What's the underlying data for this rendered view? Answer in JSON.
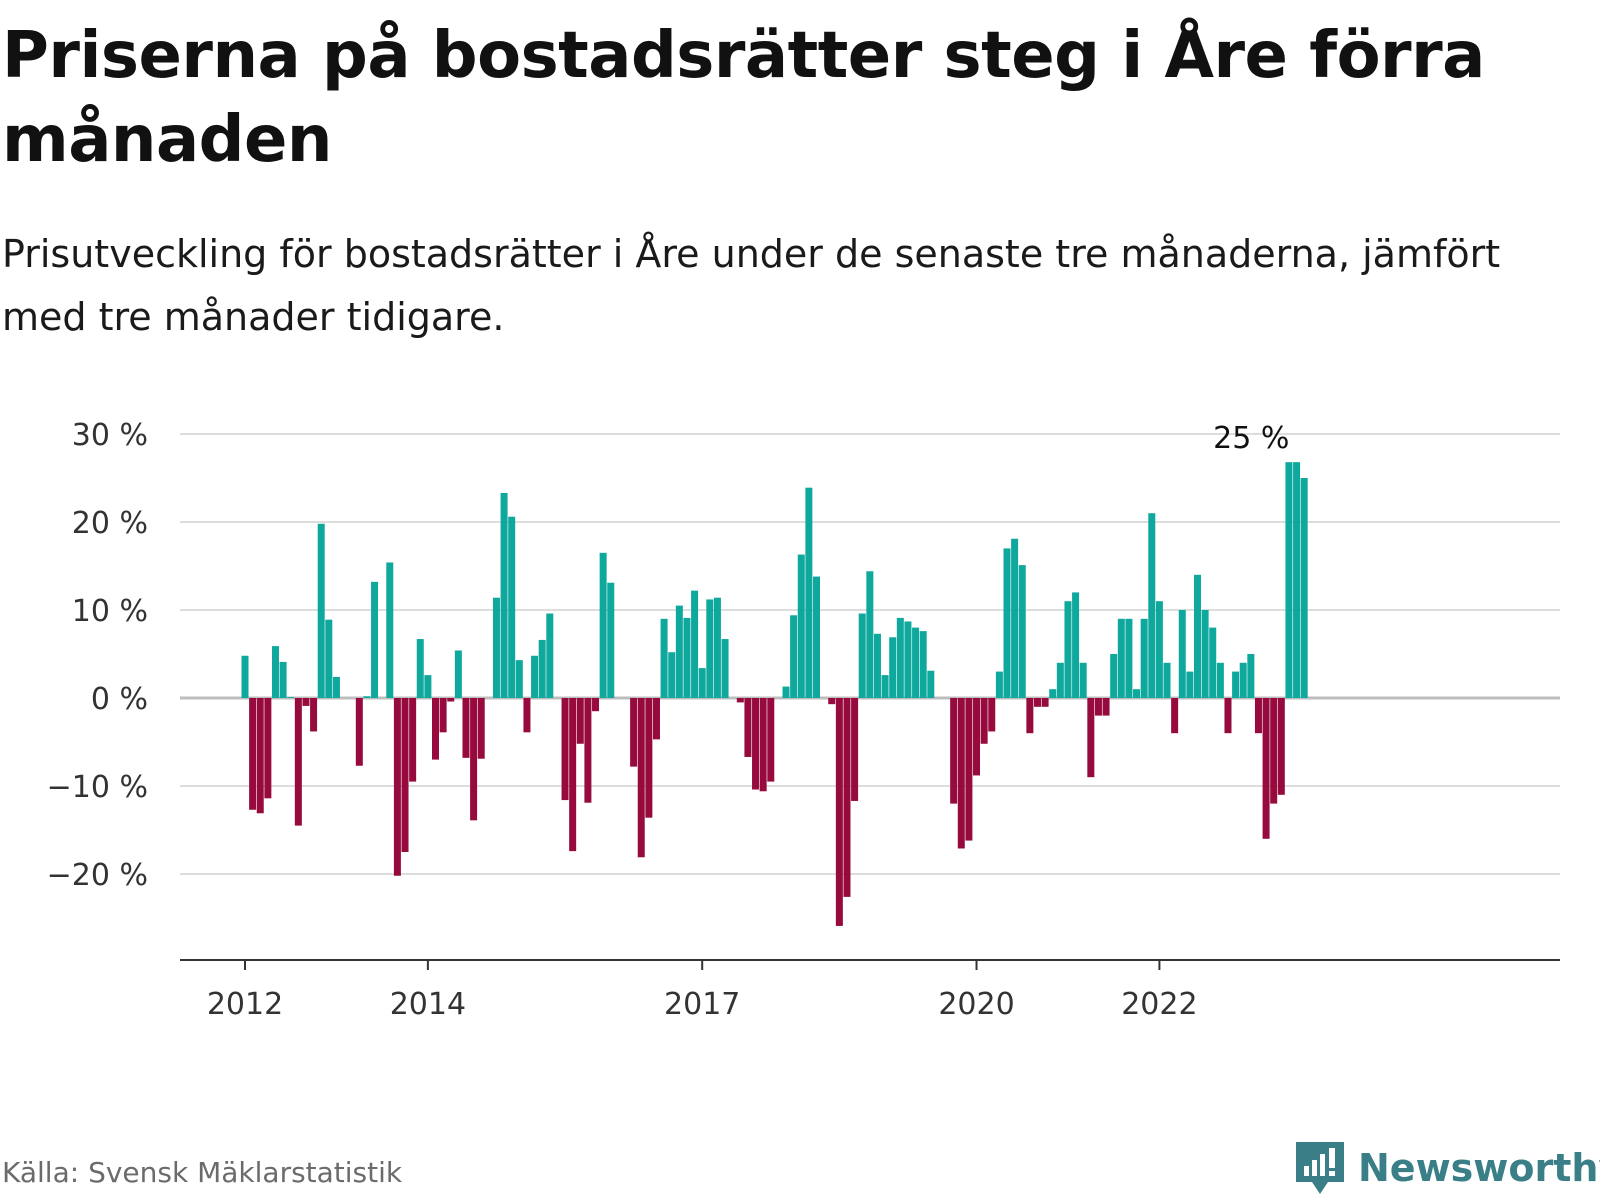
{
  "title": "Priserna på bostadsrätter steg i Åre förra månaden",
  "subtitle": "Prisutveckling för bostadsrätter i Åre under de senaste tre månaderna, jämfört med tre månader tidigare.",
  "source": "Källa: Svensk Mäklarstatistik",
  "brand": {
    "name": "Newsworthy"
  },
  "colors": {
    "positive": "#0fa89d",
    "negative": "#960a3e",
    "grid": "#dddddd",
    "axis": "#333333",
    "brand": "#3a7f87"
  },
  "chart_data": {
    "type": "bar",
    "title": "Priserna på bostadsrätter steg i Åre förra månaden",
    "xlabel": "",
    "ylabel": "",
    "ylim": [
      -30,
      30
    ],
    "y_ticks": [
      30,
      20,
      10,
      0,
      -10,
      -20
    ],
    "y_tick_labels": [
      "30 %",
      "20 %",
      "10 %",
      "0 %",
      "−10 %",
      "−20 %"
    ],
    "x_ticks": [
      "2012",
      "2014",
      "2017",
      "2020",
      "2022"
    ],
    "x_tick_month_index": [
      0,
      24,
      60,
      96,
      120
    ],
    "first_month": "2012-01",
    "grid": true,
    "legend": "none",
    "annotation": {
      "text": "25 %",
      "month_index": 131
    },
    "values": [
      4.8,
      -12.7,
      -13.1,
      -11.4,
      5.9,
      4.1,
      0.1,
      -14.5,
      -0.9,
      -3.8,
      19.8,
      8.9,
      2.4,
      null,
      null,
      -7.7,
      0.2,
      13.2,
      null,
      15.4,
      -20.2,
      -17.5,
      -9.5,
      6.7,
      2.6,
      -7.0,
      -3.9,
      -0.4,
      5.4,
      -6.8,
      -13.9,
      -6.9,
      null,
      11.4,
      23.3,
      20.6,
      4.3,
      -3.9,
      4.8,
      6.6,
      9.6,
      null,
      -11.6,
      -17.4,
      -5.2,
      -11.9,
      -1.5,
      16.5,
      13.1,
      null,
      null,
      -7.8,
      -18.1,
      -13.6,
      -4.7,
      9.0,
      5.2,
      10.5,
      9.1,
      12.2,
      3.4,
      11.2,
      11.4,
      6.7,
      null,
      -0.5,
      -6.7,
      -10.4,
      -10.6,
      -9.5,
      null,
      1.3,
      9.4,
      16.3,
      23.9,
      13.8,
      null,
      -0.7,
      -25.9,
      -22.6,
      -11.7,
      9.6,
      14.4,
      7.3,
      2.6,
      6.9,
      9.1,
      8.7,
      8.0,
      7.6,
      3.1,
      null,
      null,
      -12.0,
      -17.1,
      -16.2,
      -8.8,
      -5.2,
      -3.8,
      3.0,
      17.0,
      18.1,
      15.1,
      -4.0,
      -1.0,
      -1.0,
      1.0,
      4.0,
      11.0,
      12.0,
      4.0,
      -9.0,
      -2.0,
      -2.0,
      5.0,
      9.0,
      9.0,
      1.0,
      9.0,
      21.0,
      11.0,
      4.0,
      -4.0,
      10.0,
      3.0,
      14.0,
      10.0,
      8.0,
      4.0,
      -4.0,
      3.0,
      4.0,
      5.0,
      -4.0,
      -16.0,
      -12.0,
      -11.0,
      26.8,
      26.8,
      25.0
    ]
  }
}
